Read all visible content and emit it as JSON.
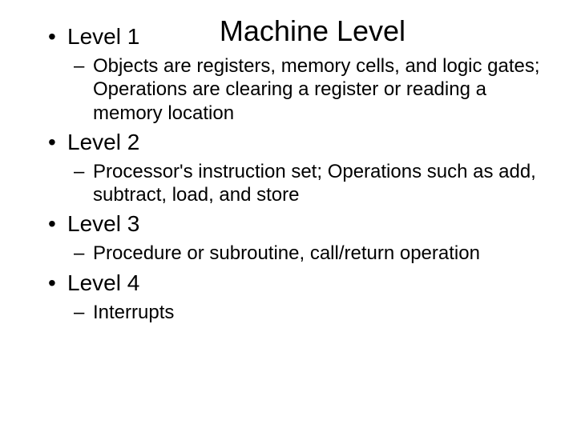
{
  "title": "Machine Level",
  "levels": [
    {
      "label": "Level 1",
      "description": "Objects are registers, memory cells, and logic gates; Operations are clearing a register or reading a memory location"
    },
    {
      "label": "Level 2",
      "description": "Processor's instruction set; Operations such as add, subtract, load, and store"
    },
    {
      "label": "Level 3",
      "description": "Procedure or subroutine, call/return operation"
    },
    {
      "label": "Level 4",
      "description": "Interrupts"
    }
  ],
  "colors": {
    "background": "#ffffff",
    "text": "#000000"
  },
  "typography": {
    "family": "Arial",
    "title_fontsize": 36,
    "level_fontsize": 28,
    "sub_fontsize": 24
  }
}
